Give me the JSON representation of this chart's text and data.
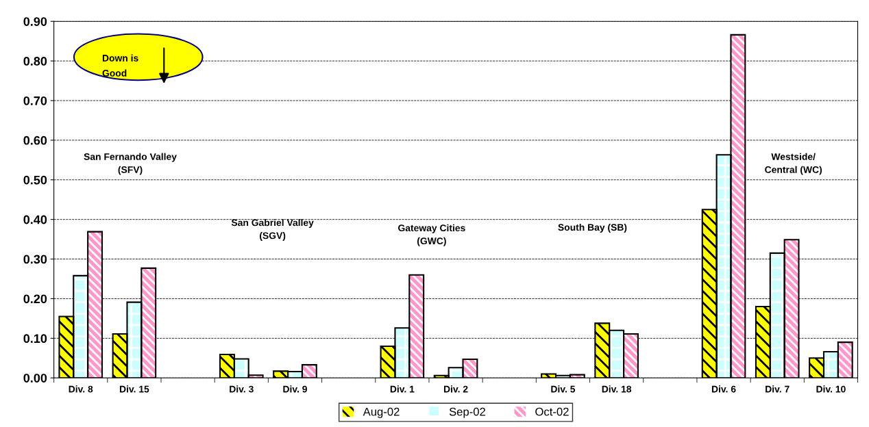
{
  "chart_data": {
    "type": "bar",
    "categories": [
      "Div. 8",
      "Div. 15",
      null,
      "Div. 3",
      "Div. 9",
      null,
      "Div. 1",
      "Div. 2",
      null,
      "Div. 5",
      "Div. 18",
      null,
      "Div. 6",
      "Div. 7",
      "Div. 10"
    ],
    "series": [
      {
        "name": "Aug-02",
        "color": "#ffff00",
        "values": [
          0.155,
          0.111,
          null,
          0.059,
          0.017,
          null,
          0.08,
          0.006,
          null,
          0.01,
          0.138,
          null,
          0.425,
          0.18,
          0.05
        ]
      },
      {
        "name": "Sep-02",
        "color": "#ccffff",
        "values": [
          0.258,
          0.191,
          null,
          0.048,
          0.016,
          null,
          0.126,
          0.026,
          null,
          0.006,
          0.12,
          null,
          0.563,
          0.315,
          0.066
        ]
      },
      {
        "name": "Oct-02",
        "color": "#ff99cc",
        "values": [
          0.369,
          0.277,
          null,
          0.007,
          0.033,
          null,
          0.26,
          0.047,
          null,
          0.008,
          0.111,
          null,
          0.866,
          0.349,
          0.09
        ]
      }
    ],
    "ylim": [
      0,
      0.9
    ],
    "yticks": [
      {
        "value": 0,
        "label": "0.00"
      },
      {
        "value": 0.1,
        "label": "0.10"
      },
      {
        "value": 0.2,
        "label": "0.20"
      },
      {
        "value": 0.3,
        "label": "0.30"
      },
      {
        "value": 0.4,
        "label": "0.40"
      },
      {
        "value": 0.5,
        "label": "0.50"
      },
      {
        "value": 0.6,
        "label": "0.60"
      },
      {
        "value": 0.7,
        "label": "0.70"
      },
      {
        "value": 0.8,
        "label": "0.80"
      },
      {
        "value": 0.9,
        "label": "0.90"
      }
    ],
    "grid": "y",
    "legend": "bottom",
    "annotations": [
      "San Fernando Valley\n(SFV)",
      "San Gabriel Valley\n(SGV)",
      "Gateway Cities\n(GWC)",
      "South Bay (SB)",
      "Westside/\nCentral (WC)",
      "Down is\nGood"
    ]
  }
}
